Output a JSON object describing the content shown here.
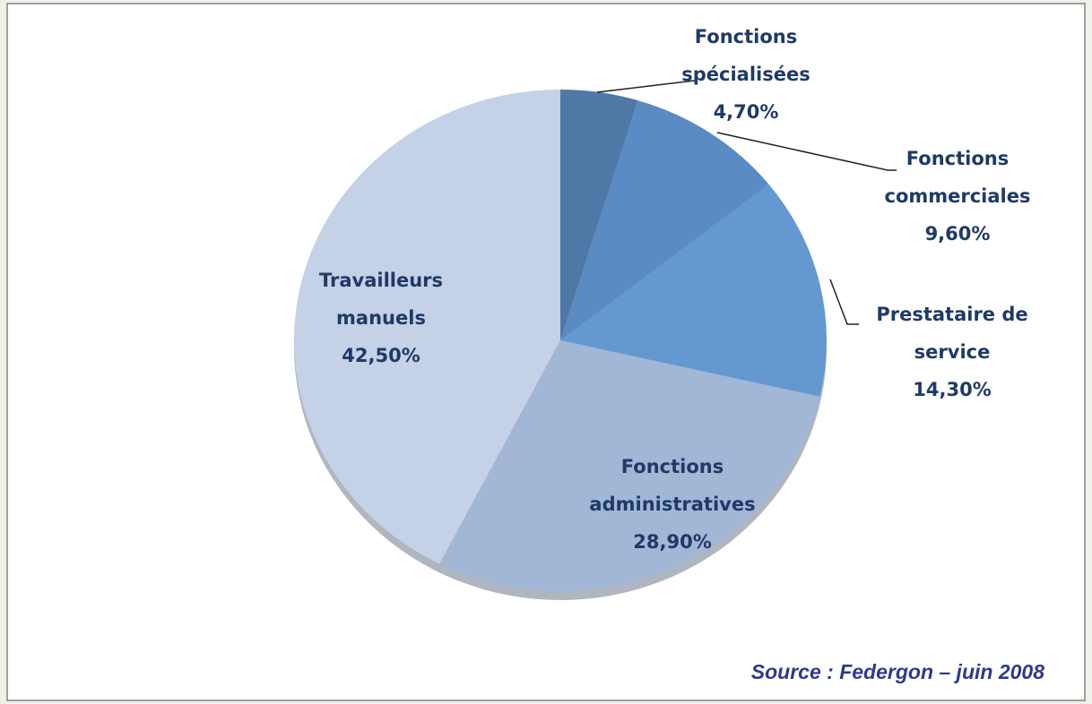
{
  "chart_data": {
    "type": "pie",
    "categories": [
      [
        "Fonctions",
        "spécialisées"
      ],
      [
        "Fonctions",
        "commerciales"
      ],
      [
        "Prestataire de",
        "service"
      ],
      [
        "Fonctions",
        "administratives"
      ],
      [
        "Travailleurs",
        "manuels"
      ]
    ],
    "values": [
      4.7,
      9.6,
      14.3,
      28.9,
      42.5
    ],
    "value_labels": [
      "4,70%",
      "9,60%",
      "14,30%",
      "28,90%",
      "42,50%"
    ],
    "colors": [
      "#4f78a6",
      "#5a8bc2",
      "#6498d0",
      "#a2b6d6",
      "#c4d1e6"
    ],
    "source": "Source : Federgon – juin 2008"
  }
}
